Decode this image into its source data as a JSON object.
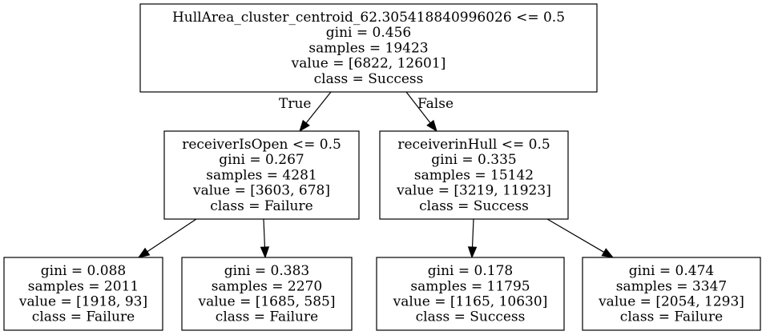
{
  "tree": {
    "nodes": [
      {
        "id": "root",
        "lines": [
          "HullArea_cluster_centroid_62.305418840996026 <= 0.5",
          "gini = 0.456",
          "samples = 19423",
          "value = [6822, 12601]",
          "class = Success"
        ]
      },
      {
        "id": "left",
        "lines": [
          "receiverIsOpen <= 0.5",
          "gini = 0.267",
          "samples = 4281",
          "value = [3603, 678]",
          "class = Failure"
        ]
      },
      {
        "id": "right",
        "lines": [
          "receiverinHull <= 0.5",
          "gini = 0.335",
          "samples = 15142",
          "value = [3219, 11923]",
          "class = Success"
        ]
      },
      {
        "id": "leaf-ll",
        "lines": [
          "gini = 0.088",
          "samples = 2011",
          "value = [1918, 93]",
          "class = Failure"
        ]
      },
      {
        "id": "leaf-lr",
        "lines": [
          "gini = 0.383",
          "samples = 2270",
          "value = [1685, 585]",
          "class = Failure"
        ]
      },
      {
        "id": "leaf-rl",
        "lines": [
          "gini = 0.178",
          "samples = 11795",
          "value = [1165, 10630]",
          "class = Success"
        ]
      },
      {
        "id": "leaf-rr",
        "lines": [
          "gini = 0.474",
          "samples = 3347",
          "value = [2054, 1293]",
          "class = Failure"
        ]
      }
    ],
    "edges": [
      {
        "from": "root",
        "to": "left",
        "label": "True"
      },
      {
        "from": "root",
        "to": "right",
        "label": "False"
      },
      {
        "from": "left",
        "to": "leaf-ll",
        "label": ""
      },
      {
        "from": "left",
        "to": "leaf-lr",
        "label": ""
      },
      {
        "from": "right",
        "to": "leaf-rl",
        "label": ""
      },
      {
        "from": "right",
        "to": "leaf-rr",
        "label": ""
      }
    ]
  }
}
